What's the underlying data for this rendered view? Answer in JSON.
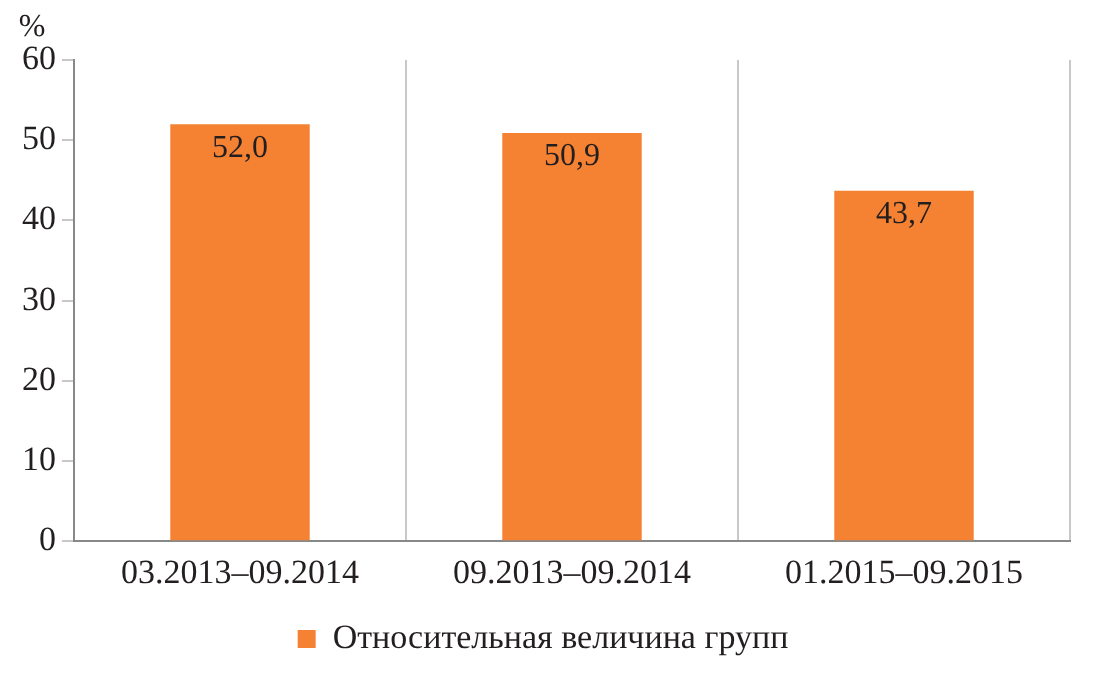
{
  "chart_data": {
    "type": "bar",
    "ylabel": "%",
    "categories": [
      "03.2013–09.2014",
      "09.2013–09.2014",
      "01.2015–09.2015"
    ],
    "series": [
      {
        "name": "Относительная величина групп",
        "color": "#f58232",
        "values": [
          52.0,
          50.9,
          43.7
        ]
      }
    ],
    "value_labels": [
      "52,0",
      "50,9",
      "43,7"
    ],
    "ylim": [
      0,
      60
    ],
    "yticks": [
      0,
      10,
      20,
      30,
      40,
      50,
      60
    ],
    "grid": "x",
    "legend": "bottom"
  }
}
